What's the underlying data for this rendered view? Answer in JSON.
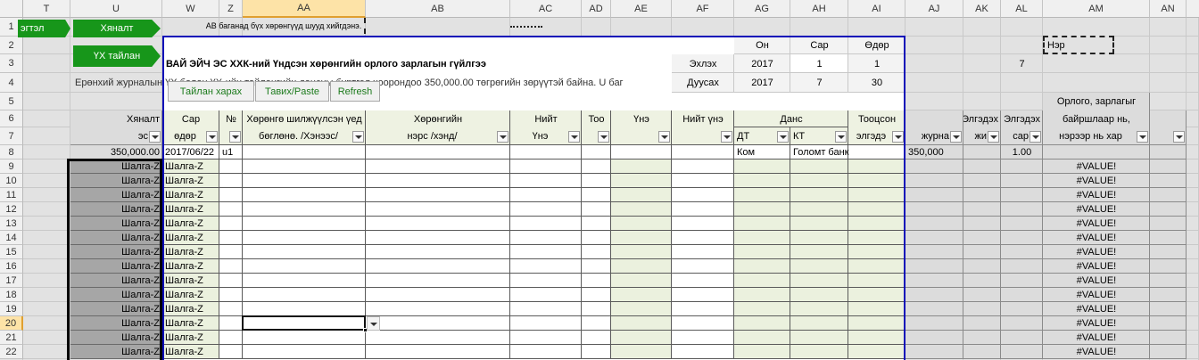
{
  "column_headers": [
    "T",
    "U",
    "W",
    "Z",
    "AA",
    "AB",
    "AC",
    "AD",
    "AE",
    "AF",
    "AG",
    "AH",
    "AI",
    "AJ",
    "AK",
    "AL",
    "AM",
    "AN"
  ],
  "row_numbers": [
    1,
    2,
    3,
    4,
    5,
    6,
    7,
    8,
    9,
    10,
    11,
    12,
    13,
    14,
    15,
    16,
    17,
    18,
    19,
    20,
    21,
    22
  ],
  "navigation": {
    "partial_tab": "эгтэл",
    "check_button": "Хяналт",
    "report_button": "ҮХ тайлан"
  },
  "note": "АВ баганад бүх хөрөнгүүд шууд хийгдэнэ.",
  "title": "ВАЙ ЭЙЧ ЭС ХХК-ний Үндсэн хөрөнгийн орлого зарлагын гүйлгээ",
  "period": {
    "headers": [
      "Он",
      "Сар",
      "Өдөр"
    ],
    "start": {
      "label": "Эхлэх",
      "values": [
        "2017",
        "1",
        "1"
      ]
    },
    "end": {
      "label": "Дуусах",
      "values": [
        "2017",
        "7",
        "30"
      ]
    }
  },
  "name_box": "Нэр",
  "side_value": "7",
  "message": "Ерөнхий журналын ҮХ болон ҮХ-ийн тайлангийн дансны бүртгэл хоорондоо 350,000.00 төгрөгийн зөрүүтэй байна. U баг",
  "buttons": [
    "Тайлан харах",
    "Тавих/Paste",
    "Refresh"
  ],
  "headers": {
    "control": [
      "Хяналт",
      "эс"
    ],
    "date": [
      "Сар",
      "өдөр"
    ],
    "number": [
      "№"
    ],
    "from": [
      "Хөрөнгө шилжүүлсэн үед",
      "бөглөнө. /Хэнээс/"
    ],
    "asset": [
      "Хөрөнгийн",
      "нэрс /хэнд/"
    ],
    "total_price": [
      "Нийт",
      "Үнэ"
    ],
    "quantity": [
      "Тоо"
    ],
    "price": [
      "Үнэ"
    ],
    "total_value": [
      "Нийт үнэ"
    ],
    "account": [
      "Данс"
    ],
    "debit": [
      "ДТ"
    ],
    "credit": [
      "КТ"
    ],
    "depreciation": [
      "Тооцсон",
      "элгэдэ"
    ],
    "journal": [
      "журна"
    ],
    "dep_month": [
      "Элгэдэх",
      "жи"
    ],
    "dep_rate": [
      "Элгэдэх",
      "сар"
    ],
    "report": [
      "Орлого, зарлагыг",
      "байршлаар нь,",
      "нэрээр нь хар"
    ]
  },
  "summary_row": {
    "total": "350,000.00",
    "date": "2017/06/22",
    "code": "u1",
    "debit": "Ком",
    "credit": "Голомт банк",
    "journal": "350,000",
    "rate": "1.00"
  },
  "check_rows": {
    "control": [
      "Шалга-Z",
      "Шалга-Z",
      "Шалга-Z",
      "Шалга-Z",
      "Шалга-Z",
      "Шалга-Z",
      "Шалга-Z",
      "Шалга-Z",
      "Шалга-Z",
      "Шалга-Z",
      "Шалга-Z",
      "Шалга-Z",
      "Шалга-Z",
      "Шалга-Z"
    ],
    "date": [
      "Шалга-Z",
      "Шалга-Z",
      "Шалга-Z",
      "Шалга-Z",
      "Шалга-Z",
      "Шалга-Z",
      "Шалга-Z",
      "Шалга-Z",
      "Шалга-Z",
      "Шалга-Z",
      "Шалга-Z",
      "Шалга-Z",
      "Шалга-Z",
      "Шалга-Z"
    ],
    "report": [
      "#VALUE!",
      "#VALUE!",
      "#VALUE!",
      "#VALUE!",
      "#VALUE!",
      "#VALUE!",
      "#VALUE!",
      "#VALUE!",
      "#VALUE!",
      "#VALUE!",
      "#VALUE!",
      "#VALUE!",
      "#VALUE!",
      "#VALUE!"
    ]
  }
}
